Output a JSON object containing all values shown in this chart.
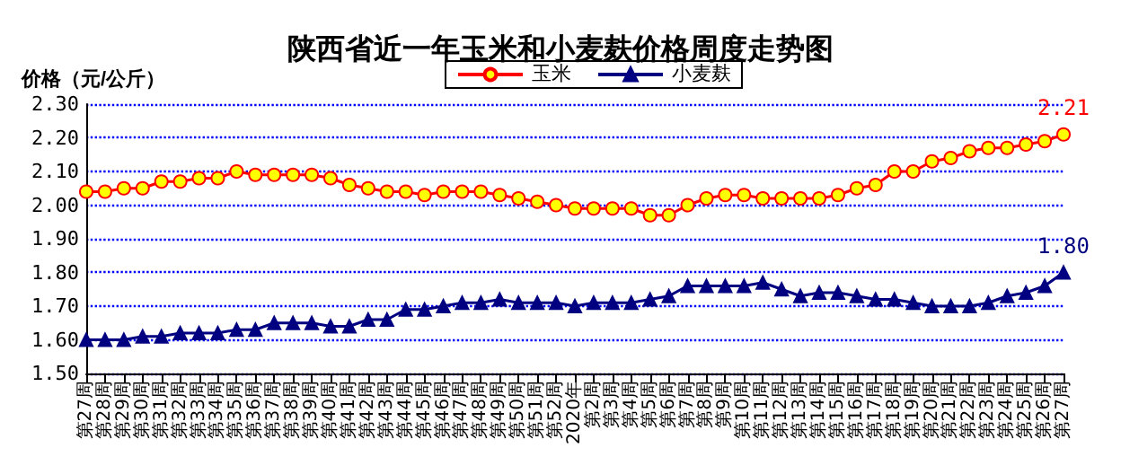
{
  "chart_data": {
    "type": "line",
    "title": "陕西省近一年玉米和小麦麸价格周度走势图",
    "ylabel": "价格（元/公斤）",
    "categories": [
      "第27周",
      "第28周",
      "第29周",
      "第30周",
      "第31周",
      "第32周",
      "第33周",
      "第34周",
      "第35周",
      "第36周",
      "第37周",
      "第38周",
      "第39周",
      "第40周",
      "第41周",
      "第42周",
      "第43周",
      "第44周",
      "第45周",
      "第46周",
      "第47周",
      "第48周",
      "第49周",
      "第50周",
      "第51周",
      "第52周",
      "2020年",
      "第2周",
      "第3周",
      "第4周",
      "第5周",
      "第6周",
      "第7周",
      "第8周",
      "第9周",
      "第10周",
      "第11周",
      "第12周",
      "第13周",
      "第14周",
      "第15周",
      "第16周",
      "第17周",
      "第18周",
      "第19周",
      "第20周",
      "第21周",
      "第22周",
      "第23周",
      "第24周",
      "第25周",
      "第26周",
      "第27周"
    ],
    "series": [
      {
        "name": "玉米",
        "color": "#ff0000",
        "marker": "circle",
        "values": [
          2.04,
          2.04,
          2.05,
          2.05,
          2.07,
          2.07,
          2.08,
          2.08,
          2.1,
          2.09,
          2.09,
          2.09,
          2.09,
          2.08,
          2.06,
          2.05,
          2.04,
          2.04,
          2.03,
          2.04,
          2.04,
          2.04,
          2.03,
          2.02,
          2.01,
          2.0,
          1.99,
          1.99,
          1.99,
          1.99,
          1.97,
          1.97,
          2.0,
          2.02,
          2.03,
          2.03,
          2.02,
          2.02,
          2.02,
          2.02,
          2.03,
          2.05,
          2.06,
          2.1,
          2.1,
          2.13,
          2.14,
          2.16,
          2.17,
          2.17,
          2.18,
          2.19,
          2.21
        ],
        "value_labels": [
          null,
          null,
          null,
          null,
          null,
          null,
          null,
          null,
          null,
          null,
          null,
          null,
          null,
          null,
          null,
          null,
          null,
          null,
          null,
          null,
          null,
          null,
          null,
          null,
          null,
          null,
          null,
          null,
          null,
          null,
          null,
          null,
          null,
          null,
          null,
          null,
          null,
          null,
          null,
          null,
          null,
          null,
          null,
          null,
          null,
          null,
          null,
          null,
          null,
          null,
          null,
          null,
          "2.21"
        ]
      },
      {
        "name": "小麦麸",
        "color": "#000080",
        "marker": "triangle",
        "values": [
          1.6,
          1.6,
          1.6,
          1.61,
          1.61,
          1.62,
          1.62,
          1.62,
          1.63,
          1.63,
          1.65,
          1.65,
          1.65,
          1.64,
          1.64,
          1.66,
          1.66,
          1.69,
          1.69,
          1.7,
          1.71,
          1.71,
          1.72,
          1.71,
          1.71,
          1.71,
          1.7,
          1.71,
          1.71,
          1.71,
          1.72,
          1.73,
          1.76,
          1.76,
          1.76,
          1.76,
          1.77,
          1.75,
          1.73,
          1.74,
          1.74,
          1.73,
          1.72,
          1.72,
          1.71,
          1.7,
          1.7,
          1.7,
          1.71,
          1.73,
          1.74,
          1.76,
          1.8
        ],
        "value_labels": [
          null,
          null,
          null,
          null,
          null,
          null,
          null,
          null,
          null,
          null,
          null,
          null,
          null,
          null,
          null,
          null,
          null,
          null,
          null,
          null,
          null,
          null,
          null,
          null,
          null,
          null,
          null,
          null,
          null,
          null,
          null,
          null,
          null,
          null,
          null,
          null,
          null,
          null,
          null,
          null,
          null,
          null,
          null,
          null,
          null,
          null,
          null,
          null,
          null,
          null,
          null,
          null,
          "1.80"
        ]
      }
    ],
    "ylim": [
      1.5,
      2.3
    ],
    "yticks": [
      {
        "value": 1.5,
        "label": "1.50"
      },
      {
        "value": 1.6,
        "label": "1.60"
      },
      {
        "value": 1.7,
        "label": "1.70"
      },
      {
        "value": 1.8,
        "label": "1.80"
      },
      {
        "value": 1.9,
        "label": "1.90"
      },
      {
        "value": 2.0,
        "label": "2.00"
      },
      {
        "value": 2.1,
        "label": "2.10"
      },
      {
        "value": 2.2,
        "label": "2.20"
      },
      {
        "value": 2.3,
        "label": "2.30"
      }
    ],
    "grid": "y",
    "legend": "top",
    "line_style": "solid"
  }
}
